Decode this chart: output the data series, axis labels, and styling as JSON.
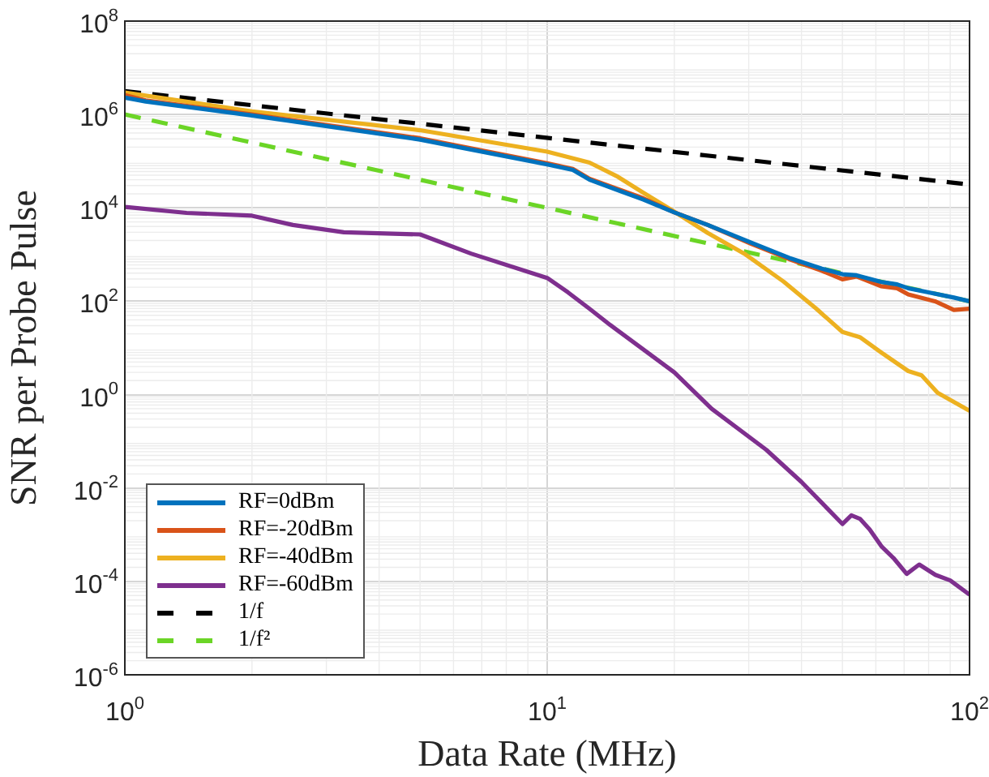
{
  "chart_data": {
    "type": "line",
    "xlabel": "Data Rate (MHz)",
    "ylabel": "SNR per Probe Pulse",
    "log": "xy",
    "grid": true,
    "legend": "bottom left",
    "xlim": [
      1,
      100
    ],
    "xticks": [
      {
        "value": 1,
        "label": "10$^{0}$"
      },
      {
        "value": 10,
        "label": "10$^{1}$"
      },
      {
        "value": 100,
        "label": "10$^{2}$"
      }
    ],
    "ylim": [
      1e-06,
      100000000.0
    ],
    "yticks": [
      {
        "value": 1e-06,
        "label": "10$^{-6}$"
      },
      {
        "value": 0.0001,
        "label": "10$^{-4}$"
      },
      {
        "value": 0.01,
        "label": "10$^{-2}$"
      },
      {
        "value": 1,
        "label": "10$^{0}$"
      },
      {
        "value": 100,
        "label": "10$^{2}$"
      },
      {
        "value": 10000,
        "label": "10$^{4}$"
      },
      {
        "value": 1000000.0,
        "label": "10$^{6}$"
      },
      {
        "value": 100000000.0,
        "label": "10$^{8}$"
      }
    ],
    "series": [
      {
        "name": "RF=0dBm",
        "color": "#0072bd",
        "line_style": "solid",
        "x": [
          1,
          1.12,
          2,
          5,
          10,
          11.5,
          12.6,
          16.9,
          20,
          24,
          30.4,
          37.4,
          44.7,
          50,
          54,
          61.7,
          67.4,
          71.6,
          80,
          91.8,
          100
        ],
        "values": [
          2300000,
          1900000,
          950000,
          290000,
          85000,
          65000,
          40000,
          15000,
          8000,
          4300,
          1800,
          850,
          500,
          380,
          360,
          260,
          230,
          190,
          155,
          120,
          100
        ]
      },
      {
        "name": "RF=-20dBm",
        "color": "#d95319",
        "line_style": "solid",
        "x": [
          1,
          1.12,
          2,
          5,
          10,
          11.5,
          12.6,
          16.9,
          20,
          24,
          30.4,
          37.4,
          44.7,
          50,
          54,
          61.7,
          67.4,
          71.6,
          82.8,
          91.8,
          100
        ],
        "values": [
          2600000,
          2000000,
          1000000,
          310000,
          90000,
          68000,
          42000,
          16000,
          8000,
          4300,
          1700,
          800,
          450,
          295,
          340,
          210,
          190,
          140,
          100,
          65,
          69
        ]
      },
      {
        "name": "RF=-40dBm",
        "color": "#edb120",
        "line_style": "solid",
        "x": [
          1,
          2,
          5,
          10,
          12.6,
          14.6,
          16.9,
          20,
          24,
          29.5,
          36.3,
          43.4,
          50,
          55,
          61.7,
          71.6,
          77,
          84,
          100
        ],
        "values": [
          2950000,
          1170000,
          460000,
          160000,
          93000,
          48000,
          21000,
          8300,
          2900,
          1000,
          263,
          69,
          22,
          17,
          8.1,
          3.2,
          2.6,
          1.1,
          0.45
        ]
      },
      {
        "name": "RF=-60dBm",
        "color": "#7e2f8e",
        "line_style": "solid",
        "x": [
          1,
          1.4,
          2,
          2.5,
          3.3,
          5,
          6.6,
          10,
          11.2,
          12.6,
          14.1,
          20,
          24.5,
          33,
          40,
          50,
          52.5,
          55,
          58,
          62,
          66,
          71,
          76,
          83,
          90,
          100
        ],
        "values": [
          10500,
          7800,
          6800,
          4300,
          3000,
          2700,
          1050,
          316,
          155,
          69,
          31,
          3,
          0.5,
          0.066,
          0.0135,
          0.0017,
          0.0026,
          0.0022,
          0.0013,
          0.00055,
          0.00032,
          0.000145,
          0.00023,
          0.000138,
          0.000105,
          5.2e-05
        ]
      },
      {
        "name": "1/f",
        "color": "#000000",
        "line_style": "dashed",
        "x": [
          1,
          100
        ],
        "values": [
          3160000,
          31600
        ]
      },
      {
        "name": "1/f²",
        "color": "#6bd526",
        "line_style": "dashed",
        "x": [
          1,
          100
        ],
        "values": [
          1000000,
          100
        ]
      }
    ]
  }
}
